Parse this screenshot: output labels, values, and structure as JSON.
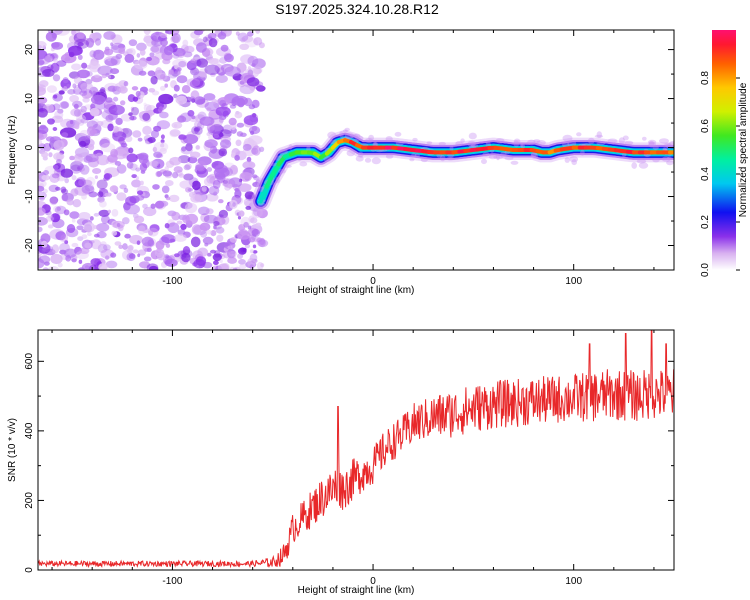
{
  "title": "S197.2025.324.10.28.R12",
  "chart_data": [
    {
      "type": "heatmap",
      "title": "S197.2025.324.10.28.R12",
      "xlabel": "Height of straight line (km)",
      "ylabel": "Frequency (Hz)",
      "xlim": [
        -167,
        150
      ],
      "ylim": [
        -25,
        24
      ],
      "xticks": [
        -100,
        0,
        100
      ],
      "yticks": [
        -20,
        -10,
        0,
        10,
        20
      ],
      "colorbar": {
        "label": "Normalized spectral amplitude",
        "range": [
          0,
          1
        ],
        "ticks": [
          "0.0",
          "0.2",
          "0.4",
          "0.6",
          "0.8"
        ]
      },
      "noise_region_x": [
        -167,
        -55
      ],
      "ridge": {
        "x": [
          -56,
          -52,
          -45,
          -38,
          -30,
          -26,
          -22,
          -18,
          -14,
          -10,
          -6,
          0,
          10,
          20,
          30,
          40,
          50,
          60,
          70,
          80,
          84,
          88,
          92,
          100,
          110,
          120,
          130,
          140,
          150
        ],
        "freq": [
          -11,
          -7,
          -2,
          -1,
          -1,
          -2,
          -1,
          1,
          1.5,
          1,
          0,
          0,
          0,
          -0.5,
          -1,
          -1,
          -0.5,
          0,
          -0.5,
          -0.5,
          -1,
          -1,
          -0.5,
          0,
          0,
          -0.5,
          -1,
          -1,
          -1
        ],
        "amplitude": [
          0.4,
          0.45,
          0.5,
          0.55,
          0.6,
          0.55,
          0.7,
          0.75,
          0.85,
          0.9,
          0.9,
          0.95,
          0.95,
          0.95,
          0.95,
          0.9,
          0.95,
          0.9,
          0.9,
          0.9,
          0.85,
          0.8,
          0.85,
          0.9,
          0.9,
          0.9,
          0.9,
          0.85,
          0.85
        ]
      }
    },
    {
      "type": "line",
      "xlabel": "Height of straight line (km)",
      "ylabel": "SNR (10 * v/v)",
      "xlim": [
        -167,
        150
      ],
      "ylim": [
        0,
        690
      ],
      "xticks": [
        -100,
        0,
        100
      ],
      "yticks": [
        0,
        200,
        400,
        600
      ],
      "series": [
        {
          "name": "SNR",
          "color": "#e8282a",
          "x": [
            -167,
            -60,
            -50,
            -45,
            -42,
            -40,
            -35,
            -30,
            -25,
            -20,
            -17,
            -15,
            -10,
            -5,
            0,
            5,
            10,
            15,
            20,
            25,
            30,
            40,
            50,
            60,
            70,
            80,
            90,
            100,
            110,
            120,
            130,
            140,
            150
          ],
          "base": [
            18,
            18,
            22,
            40,
            80,
            120,
            150,
            180,
            210,
            230,
            250,
            230,
            260,
            280,
            300,
            340,
            370,
            390,
            420,
            430,
            440,
            450,
            465,
            475,
            480,
            485,
            490,
            495,
            500,
            505,
            500,
            505,
            505
          ],
          "noise_amp": [
            8,
            8,
            15,
            30,
            40,
            45,
            50,
            55,
            60,
            65,
            70,
            60,
            60,
            55,
            55,
            55,
            55,
            55,
            60,
            60,
            65,
            70,
            70,
            70,
            70,
            70,
            70,
            70,
            75,
            75,
            75,
            75,
            75
          ],
          "spikes": [
            {
              "x": -17.5,
              "y": 470
            },
            {
              "x": 108,
              "y": 650
            },
            {
              "x": 126,
              "y": 680
            },
            {
              "x": 139,
              "y": 690
            },
            {
              "x": 146,
              "y": 650
            }
          ]
        }
      ]
    }
  ]
}
